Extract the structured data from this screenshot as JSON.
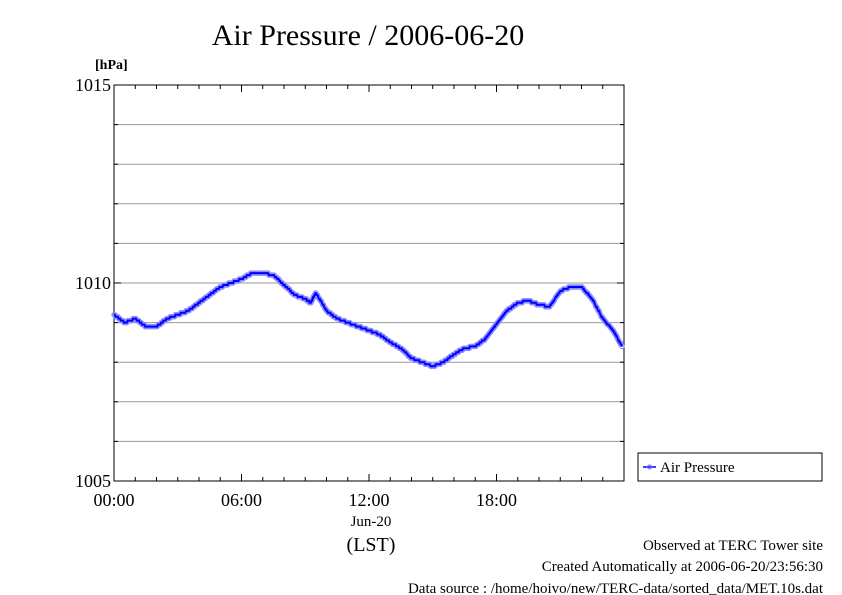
{
  "chart_data": {
    "type": "line",
    "title": "Air Pressure / 2006-06-20",
    "ylabel": "[hPa]",
    "xlabel": "(LST)",
    "date_label": "Jun-20",
    "ylim": [
      1005,
      1015
    ],
    "xlim": [
      "00:00",
      "24:00"
    ],
    "y_major_ticks": [
      1005,
      1010,
      1015
    ],
    "y_minor_grid": [
      1006,
      1007,
      1008,
      1009,
      1011,
      1012,
      1013,
      1014
    ],
    "x_tick_labels": [
      "00:00",
      "06:00",
      "12:00",
      "18:00"
    ],
    "grid": true,
    "legend_position": "right",
    "series": [
      {
        "name": "Air Pressure",
        "color": "#0000ff",
        "x_hours": [
          0,
          0.5,
          1.0,
          1.5,
          2.0,
          2.5,
          3.0,
          3.5,
          4.0,
          4.5,
          5.0,
          5.5,
          6.0,
          6.5,
          7.0,
          7.5,
          8.0,
          8.5,
          9.0,
          9.25,
          9.5,
          10.0,
          10.5,
          11.0,
          11.5,
          12.0,
          12.5,
          13.0,
          13.5,
          14.0,
          14.5,
          15.0,
          15.5,
          16.0,
          16.5,
          17.0,
          17.5,
          18.0,
          18.5,
          19.0,
          19.5,
          20.0,
          20.5,
          21.0,
          21.5,
          22.0,
          22.5,
          23.0,
          23.5,
          23.9
        ],
        "values": [
          1009.2,
          1009.0,
          1009.1,
          1008.9,
          1008.9,
          1009.1,
          1009.2,
          1009.3,
          1009.5,
          1009.7,
          1009.9,
          1010.0,
          1010.1,
          1010.25,
          1010.25,
          1010.2,
          1009.95,
          1009.7,
          1009.6,
          1009.5,
          1009.75,
          1009.3,
          1009.1,
          1009.0,
          1008.9,
          1008.8,
          1008.7,
          1008.5,
          1008.35,
          1008.1,
          1008.0,
          1007.9,
          1008.0,
          1008.2,
          1008.35,
          1008.4,
          1008.6,
          1008.95,
          1009.3,
          1009.5,
          1009.55,
          1009.45,
          1009.4,
          1009.8,
          1009.9,
          1009.9,
          1009.6,
          1009.1,
          1008.8,
          1008.4
        ]
      }
    ]
  },
  "footer": {
    "site": "Observed at TERC Tower site",
    "created": "Created Automatically at 2006-06-20/23:56:30",
    "source": "Data source : /home/hoivo/new/TERC-data/sorted_data/MET.10s.dat"
  }
}
